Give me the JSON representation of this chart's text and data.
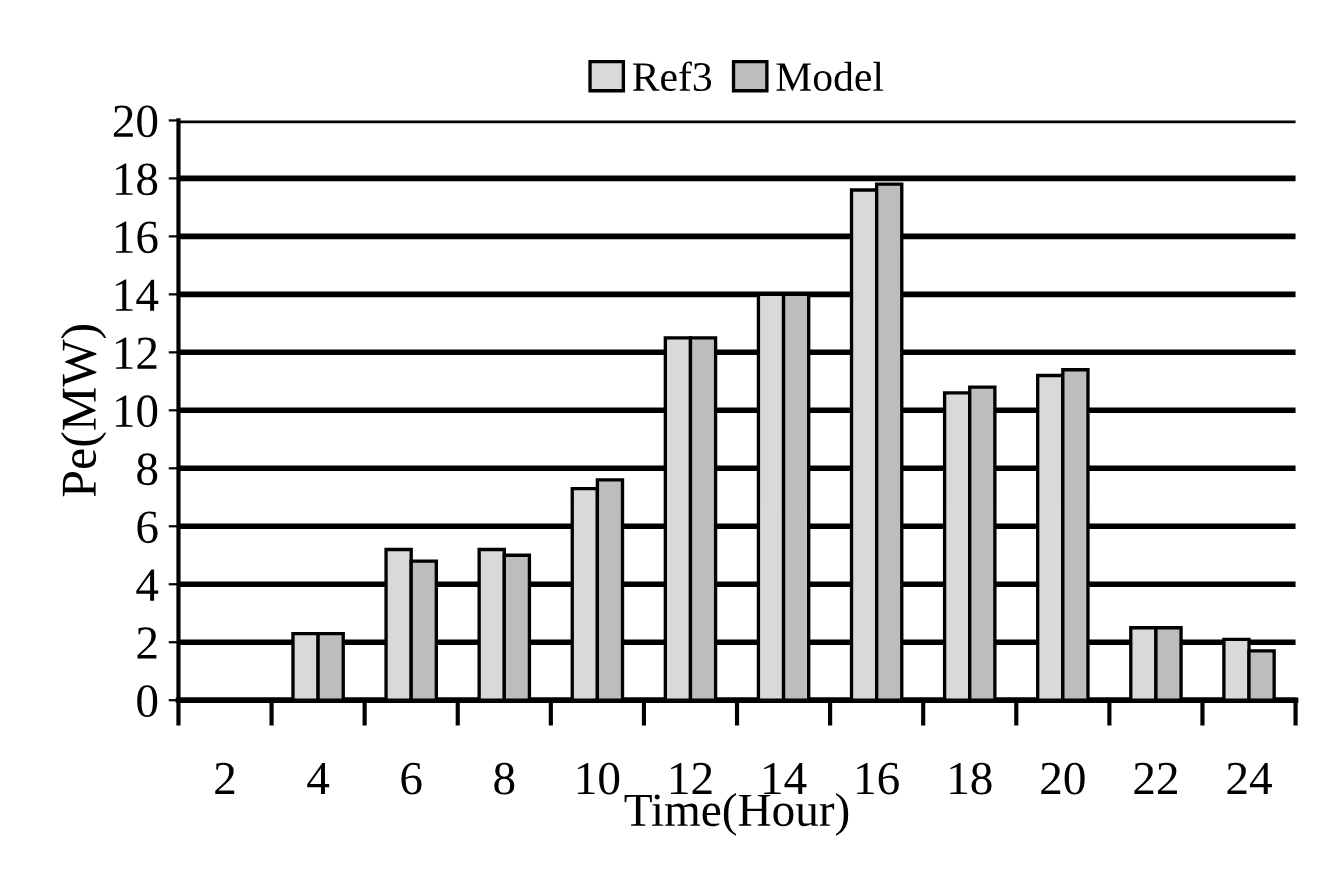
{
  "chart_data": {
    "type": "bar",
    "xlabel": "Time(Hour)",
    "ylabel": "Pe(MW)",
    "categories": [
      "2",
      "4",
      "6",
      "8",
      "10",
      "12",
      "14",
      "16",
      "18",
      "20",
      "22",
      "24"
    ],
    "series": [
      {
        "name": "Ref3",
        "color": "#d9d9d9",
        "values": [
          null,
          2.3,
          5.2,
          5.2,
          7.3,
          12.5,
          14,
          17.6,
          10.6,
          11.2,
          2.5,
          2.1
        ]
      },
      {
        "name": "Model",
        "color": "#bdbdbd",
        "values": [
          null,
          2.3,
          4.8,
          5.0,
          7.6,
          12.5,
          14,
          17.8,
          10.8,
          11.4,
          2.5,
          1.7
        ]
      }
    ],
    "ylim": [
      0,
      20
    ],
    "yticks": [
      0,
      2,
      4,
      6,
      8,
      10,
      12,
      14,
      16,
      18,
      20
    ],
    "grid": "y",
    "legend": "top"
  }
}
